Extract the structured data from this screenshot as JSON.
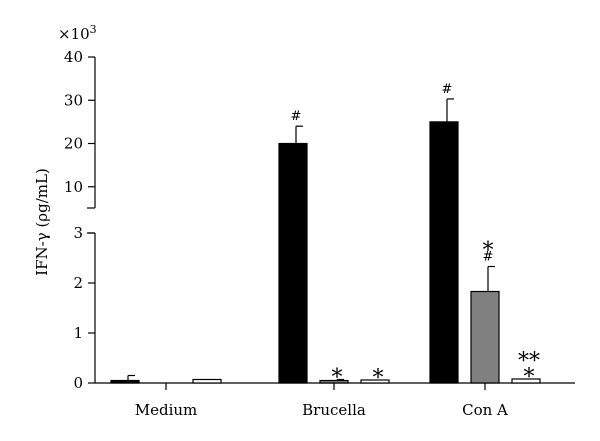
{
  "chart_data": {
    "type": "bar",
    "ylabel": "IFN-γ (ρg/mL)",
    "multiplier": "×10",
    "multiplier_exp": "3",
    "categories": [
      "Medium",
      "Brucella",
      "Con A"
    ],
    "y_axis_broken": true,
    "lower_ylim": [
      0,
      3
    ],
    "upper_ylim": [
      0,
      40
    ],
    "lower_ticks": [
      "0",
      "1",
      "2",
      "3"
    ],
    "upper_ticks": [
      "10",
      "20",
      "30",
      "40"
    ],
    "series": [
      {
        "color": "#000000",
        "values": [
          0.05,
          20.0,
          25.0
        ],
        "errors": [
          0.1,
          4.0,
          5.3
        ],
        "annotations": [
          "",
          "#",
          "#"
        ]
      },
      {
        "color": "#808080",
        "values": [
          0.0,
          0.02,
          1.83
        ],
        "errors": [
          0.0,
          0.05,
          0.5
        ],
        "annotations": [
          "",
          "*",
          "*\n#"
        ]
      },
      {
        "color": "#ffffff",
        "values": [
          0.07,
          0.06,
          0.08
        ],
        "errors": [
          0.0,
          0.0,
          0.0
        ],
        "annotations": [
          "",
          "*",
          "**\n*"
        ]
      }
    ]
  }
}
